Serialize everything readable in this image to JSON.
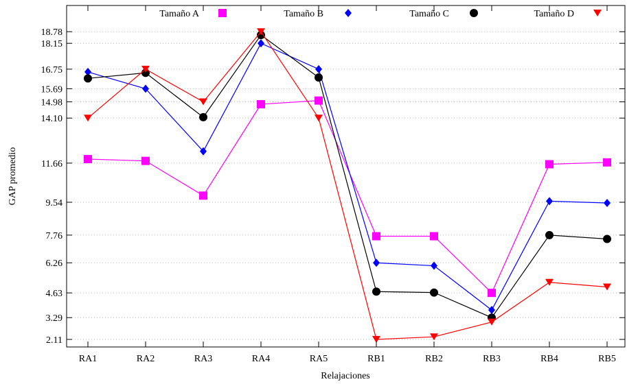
{
  "chart_data": {
    "type": "line",
    "title": "",
    "xlabel": "Relajaciones",
    "ylabel": "GAP promedio",
    "categories": [
      "RA1",
      "RA2",
      "RA3",
      "RA4",
      "RA5",
      "RB1",
      "RB2",
      "RB3",
      "RB4",
      "RB5"
    ],
    "yticks": [
      2.11,
      3.29,
      4.63,
      6.26,
      7.76,
      9.54,
      11.66,
      14.1,
      14.98,
      15.69,
      16.75,
      18.15,
      18.78
    ],
    "ytick_labels": [
      "2.11",
      "3.29",
      "4.63",
      "6.26",
      "7.76",
      "9.54",
      "11.66",
      "14.10",
      "14.98",
      "15.69",
      "16.75",
      "18.15",
      "18.78"
    ],
    "ylim": [
      1.7,
      20.2
    ],
    "grid": true,
    "legend_position": "top",
    "series": [
      {
        "name": "Tamaño A",
        "color": "#ff00ff",
        "marker": "square",
        "values": [
          11.88,
          11.78,
          9.9,
          14.85,
          15.05,
          7.7,
          7.7,
          4.63,
          11.6,
          11.7
        ]
      },
      {
        "name": "Tamaño B",
        "color": "#0000ff",
        "marker": "diamond",
        "values": [
          16.6,
          15.69,
          12.3,
          18.15,
          16.75,
          6.26,
          6.1,
          3.7,
          9.6,
          9.5
        ]
      },
      {
        "name": "Tamaño C",
        "color": "#000000",
        "marker": "circle",
        "values": [
          16.25,
          16.55,
          14.15,
          18.6,
          16.3,
          4.7,
          4.65,
          3.29,
          7.76,
          7.55
        ]
      },
      {
        "name": "Tamaño D",
        "color": "#ff0000",
        "marker": "triangle-down",
        "values": [
          14.1,
          16.75,
          14.98,
          18.78,
          14.1,
          2.11,
          2.25,
          3.05,
          5.2,
          4.95
        ]
      }
    ]
  }
}
